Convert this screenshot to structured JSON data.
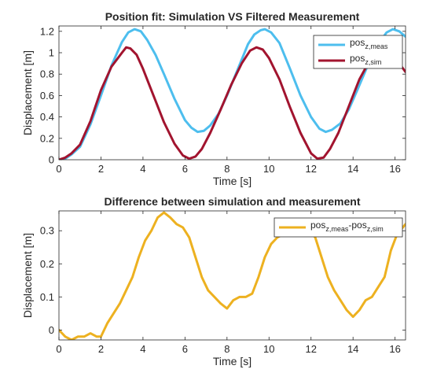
{
  "chart_data": [
    {
      "type": "line",
      "title": "Position fit: Simulation VS Filtered Measurement",
      "xlabel": "Time [s]",
      "ylabel": "Displacement [m]",
      "xlim": [
        0,
        16.5
      ],
      "ylim": [
        0,
        1.25
      ],
      "xticks": [
        0,
        2,
        4,
        6,
        8,
        10,
        12,
        14,
        16
      ],
      "yticks": [
        0,
        0.2,
        0.4,
        0.6,
        0.8,
        1,
        1.2
      ],
      "xtick_labels": [
        "0",
        "2",
        "4",
        "6",
        "8",
        "10",
        "12",
        "14",
        "16"
      ],
      "ytick_labels": [
        "0",
        "0.2",
        "0.4",
        "0.6",
        "0.8",
        "1",
        "1.2"
      ],
      "grid": false,
      "legend_position": "top-right",
      "series": [
        {
          "name_main": "pos",
          "name_sub": "z,meas",
          "color": "#4DBEEE",
          "x": [
            0,
            0.3,
            0.6,
            1,
            1.5,
            2,
            2.5,
            3,
            3.3,
            3.6,
            3.9,
            4.2,
            4.6,
            5,
            5.5,
            6,
            6.3,
            6.6,
            6.9,
            7.2,
            7.6,
            8,
            8.5,
            9,
            9.3,
            9.6,
            9.8,
            10.1,
            10.5,
            11,
            11.5,
            12,
            12.4,
            12.7,
            13,
            13.4,
            13.8,
            14.2,
            14.7,
            15.2,
            15.6,
            15.9,
            16.2,
            16.5
          ],
          "y": [
            0,
            0.01,
            0.05,
            0.12,
            0.33,
            0.6,
            0.88,
            1.1,
            1.19,
            1.22,
            1.2,
            1.12,
            0.98,
            0.8,
            0.57,
            0.37,
            0.3,
            0.26,
            0.27,
            0.32,
            0.43,
            0.6,
            0.84,
            1.08,
            1.17,
            1.21,
            1.22,
            1.19,
            1.09,
            0.85,
            0.6,
            0.4,
            0.29,
            0.26,
            0.28,
            0.34,
            0.47,
            0.65,
            0.88,
            1.08,
            1.19,
            1.22,
            1.2,
            1.15
          ]
        },
        {
          "name_main": "pos",
          "name_sub": "z,sim",
          "color": "#A2142F",
          "x": [
            0,
            0.3,
            0.6,
            1,
            1.5,
            2,
            2.5,
            3,
            3.2,
            3.4,
            3.7,
            4,
            4.5,
            5,
            5.5,
            5.9,
            6.2,
            6.5,
            6.8,
            7.2,
            7.7,
            8.2,
            8.7,
            9.1,
            9.4,
            9.7,
            10,
            10.5,
            11,
            11.5,
            12,
            12.3,
            12.6,
            12.9,
            13.3,
            13.8,
            14.3,
            14.8,
            15.2,
            15.6,
            15.9,
            16.2,
            16.5
          ],
          "y": [
            0,
            0.02,
            0.06,
            0.14,
            0.36,
            0.65,
            0.87,
            1.0,
            1.05,
            1.04,
            0.98,
            0.85,
            0.6,
            0.35,
            0.15,
            0.04,
            0.01,
            0.03,
            0.1,
            0.25,
            0.47,
            0.7,
            0.9,
            1.02,
            1.05,
            1.03,
            0.95,
            0.75,
            0.49,
            0.25,
            0.06,
            0.01,
            0.02,
            0.1,
            0.25,
            0.5,
            0.75,
            0.93,
            1.01,
            1.04,
            1.0,
            0.9,
            0.82
          ]
        }
      ]
    },
    {
      "type": "line",
      "title": "Difference between simulation and measurement",
      "xlabel": "Time [s]",
      "ylabel": "Displacement [m]",
      "xlim": [
        0,
        16.5
      ],
      "ylim": [
        -0.03,
        0.36
      ],
      "xticks": [
        0,
        2,
        4,
        6,
        8,
        10,
        12,
        14,
        16
      ],
      "yticks": [
        0,
        0.1,
        0.2,
        0.3
      ],
      "xtick_labels": [
        "0",
        "2",
        "4",
        "6",
        "8",
        "10",
        "12",
        "14",
        "16"
      ],
      "ytick_labels": [
        "0",
        "0.1",
        "0.2",
        "0.3"
      ],
      "grid": false,
      "legend_position": "top-right",
      "series": [
        {
          "name_main": "pos",
          "name_sub": "z,meas",
          "name_main2": "-pos",
          "name_sub2": "z,sim",
          "color": "#EDB120",
          "x": [
            0,
            0.3,
            0.6,
            0.9,
            1.2,
            1.5,
            1.8,
            2.0,
            2.3,
            2.6,
            2.9,
            3.2,
            3.5,
            3.8,
            4.1,
            4.4,
            4.7,
            5.0,
            5.3,
            5.6,
            5.9,
            6.2,
            6.5,
            6.8,
            7.1,
            7.4,
            7.7,
            8.0,
            8.3,
            8.6,
            8.9,
            9.2,
            9.5,
            9.8,
            10.1,
            10.4,
            10.7,
            11.0,
            11.3,
            11.6,
            11.9,
            12.2,
            12.5,
            12.8,
            13.1,
            13.4,
            13.7,
            14.0,
            14.3,
            14.6,
            14.9,
            15.2,
            15.5,
            15.8,
            16.1,
            16.5
          ],
          "y": [
            0,
            -0.02,
            -0.03,
            -0.02,
            -0.02,
            -0.01,
            -0.02,
            -0.02,
            0.02,
            0.05,
            0.08,
            0.12,
            0.16,
            0.22,
            0.27,
            0.3,
            0.34,
            0.355,
            0.34,
            0.32,
            0.31,
            0.28,
            0.22,
            0.16,
            0.12,
            0.1,
            0.08,
            0.065,
            0.09,
            0.1,
            0.1,
            0.11,
            0.16,
            0.22,
            0.26,
            0.28,
            0.29,
            0.3,
            0.29,
            0.3,
            0.3,
            0.28,
            0.22,
            0.16,
            0.12,
            0.09,
            0.06,
            0.04,
            0.06,
            0.09,
            0.1,
            0.13,
            0.16,
            0.24,
            0.29,
            0.32
          ]
        }
      ]
    }
  ]
}
